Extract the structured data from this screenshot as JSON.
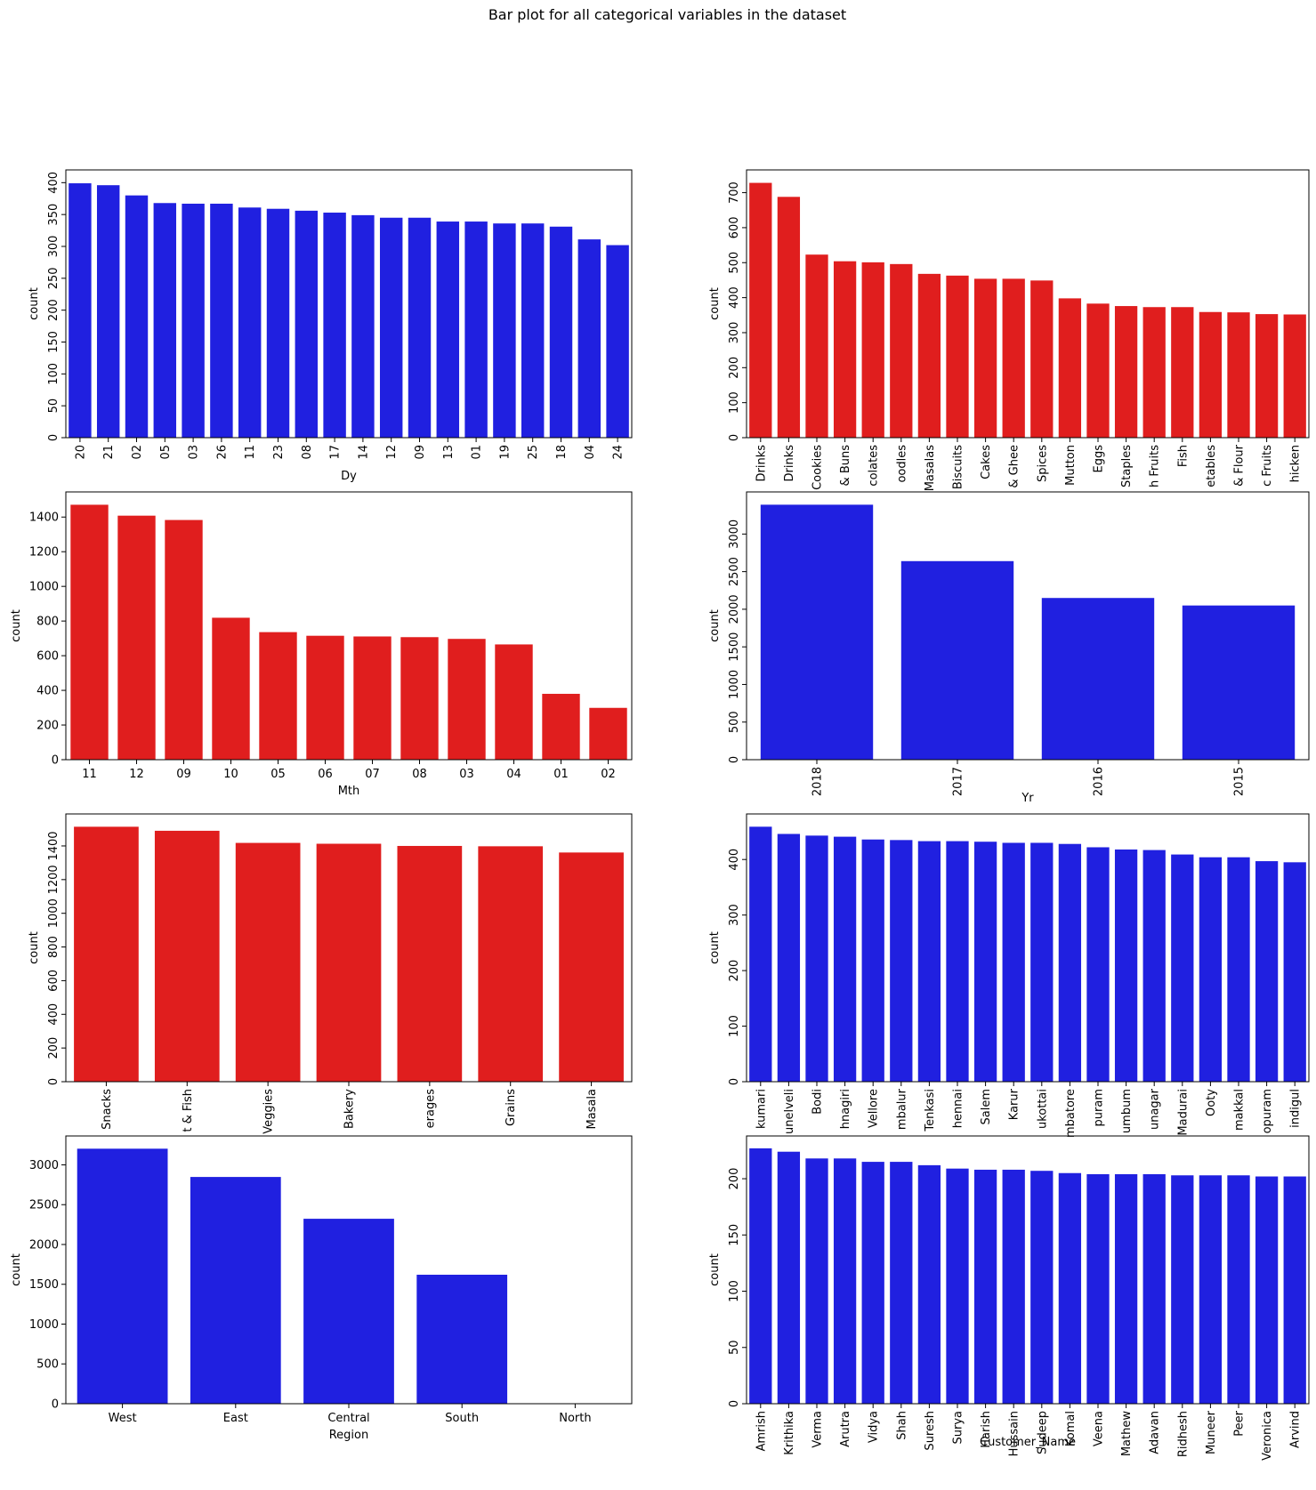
{
  "figure": {
    "title": "Bar plot for all categorical variables in the dataset"
  },
  "chart_data": [
    {
      "type": "bar",
      "xlabel": "Dy",
      "ylabel": "count",
      "color": "#2020e0",
      "categories": [
        "20",
        "21",
        "02",
        "05",
        "03",
        "26",
        "11",
        "23",
        "08",
        "17",
        "14",
        "12",
        "09",
        "13",
        "01",
        "19",
        "25",
        "18",
        "04",
        "24"
      ],
      "values": [
        399,
        396,
        380,
        368,
        367,
        367,
        361,
        359,
        356,
        353,
        349,
        345,
        345,
        339,
        339,
        336,
        336,
        331,
        311,
        302
      ],
      "ylim": [
        0,
        420
      ],
      "yticks": [
        0,
        50,
        100,
        150,
        200,
        250,
        300,
        350,
        400
      ],
      "ytick_rotation": "vertical",
      "xtick_rotation": "vertical"
    },
    {
      "type": "bar",
      "xlabel": "",
      "ylabel": "count",
      "color": "#e01e1e",
      "categories": [
        "Drinks",
        "Drinks",
        "Cookies",
        "& Buns",
        "colates",
        "oodles",
        "Masalas",
        "Biscuits",
        "Cakes",
        "& Ghee",
        "Spices",
        "Mutton",
        "Eggs",
        "Staples",
        "h Fruits",
        "Fish",
        "etables",
        "& Flour",
        "c Fruits",
        "hicken"
      ],
      "values": [
        728,
        688,
        523,
        504,
        501,
        496,
        468,
        463,
        454,
        454,
        449,
        398,
        383,
        376,
        373,
        373,
        359,
        358,
        353,
        352
      ],
      "ylim": [
        0,
        765
      ],
      "yticks": [
        0,
        100,
        200,
        300,
        400,
        500,
        600,
        700
      ],
      "ytick_rotation": "vertical",
      "xtick_rotation": "vertical"
    },
    {
      "type": "bar",
      "xlabel": "Mth",
      "ylabel": "count",
      "color": "#e01e1e",
      "categories": [
        "11",
        "12",
        "09",
        "10",
        "05",
        "06",
        "07",
        "08",
        "03",
        "04",
        "01",
        "02"
      ],
      "values": [
        1471,
        1408,
        1383,
        819,
        736,
        715,
        711,
        707,
        697,
        665,
        380,
        299
      ],
      "ylim": [
        0,
        1545
      ],
      "yticks": [
        0,
        200,
        400,
        600,
        800,
        1000,
        1200,
        1400
      ],
      "ytick_rotation": "horizontal",
      "xtick_rotation": "horizontal"
    },
    {
      "type": "bar",
      "xlabel": "Yr",
      "ylabel": "count",
      "color": "#2020e0",
      "categories": [
        "2018",
        "2017",
        "2016",
        "2015"
      ],
      "values": [
        3390,
        2640,
        2150,
        2050
      ],
      "ylim": [
        0,
        3560
      ],
      "yticks": [
        0,
        500,
        1000,
        1500,
        2000,
        2500,
        3000
      ],
      "ytick_rotation": "vertical",
      "xtick_rotation": "vertical"
    },
    {
      "type": "bar",
      "xlabel": "",
      "ylabel": "count",
      "color": "#e01e1e",
      "categories": [
        "Snacks",
        "t & Fish",
        "Veggies",
        "Bakery",
        "erages",
        "Grains",
        "Masala"
      ],
      "values": [
        1514,
        1490,
        1418,
        1413,
        1400,
        1398,
        1361
      ],
      "ylim": [
        0,
        1590
      ],
      "yticks": [
        0,
        200,
        400,
        600,
        800,
        1000,
        1200,
        1400
      ],
      "ytick_rotation": "vertical",
      "xtick_rotation": "vertical"
    },
    {
      "type": "bar",
      "xlabel": "",
      "ylabel": "count",
      "color": "#2020e0",
      "categories": [
        "kumari",
        "unelveli",
        "Bodi",
        "hnagiri",
        "Vellore",
        "mbalur",
        "Tenkasi",
        "hennai",
        "Salem",
        "Karur",
        "ukottai",
        "mbatore",
        "puram",
        "umbum",
        "unagar",
        "Madurai",
        "Ooty",
        "makkal",
        "opuram",
        "indigul"
      ],
      "values": [
        459,
        446,
        443,
        441,
        436,
        435,
        433,
        433,
        432,
        430,
        430,
        428,
        422,
        418,
        417,
        409,
        404,
        404,
        397,
        395
      ],
      "ylim": [
        0,
        482
      ],
      "yticks": [
        0,
        100,
        200,
        300,
        400
      ],
      "ytick_rotation": "vertical",
      "xtick_rotation": "vertical"
    },
    {
      "type": "bar",
      "xlabel": "Region",
      "ylabel": "count",
      "color": "#2020e0",
      "categories": [
        "West",
        "East",
        "Central",
        "South",
        "North"
      ],
      "values": [
        3203,
        2848,
        2323,
        1620,
        1
      ],
      "ylim": [
        0,
        3363
      ],
      "yticks": [
        0,
        500,
        1000,
        1500,
        2000,
        2500,
        3000
      ],
      "ytick_rotation": "horizontal",
      "xtick_rotation": "horizontal"
    },
    {
      "type": "bar",
      "xlabel": "Customer_Name",
      "ylabel": "count",
      "color": "#2020e0",
      "categories": [
        "Amrish",
        "Krithika",
        "Verma",
        "Arutra",
        "Vidya",
        "Shah",
        "Suresh",
        "Surya",
        "Harish",
        "Hussain",
        "Sudeep",
        "Komal",
        "Veena",
        "Mathew",
        "Adavan",
        "Ridhesh",
        "Muneer",
        "Peer",
        "Veronica",
        "Arvind"
      ],
      "values": [
        227,
        224,
        218,
        218,
        215,
        215,
        212,
        209,
        208,
        208,
        207,
        205,
        204,
        204,
        204,
        203,
        203,
        203,
        202,
        202
      ],
      "ylim": [
        0,
        238
      ],
      "yticks": [
        0,
        50,
        100,
        150,
        200
      ],
      "ytick_rotation": "vertical",
      "xtick_rotation": "vertical"
    }
  ]
}
